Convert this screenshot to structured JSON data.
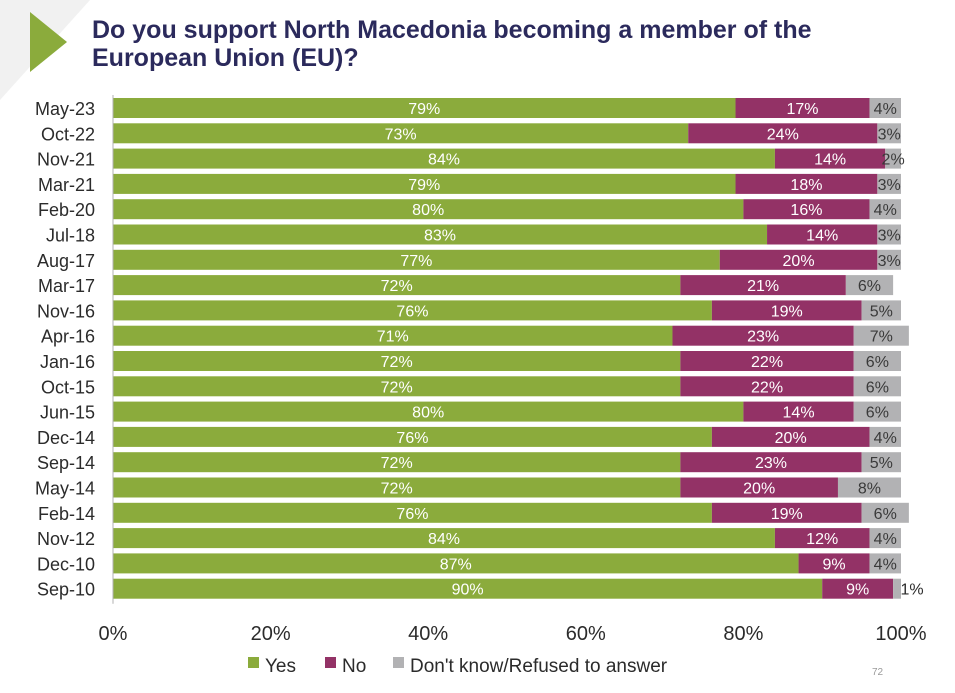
{
  "title": "Do you support North Macedonia becoming a member of the European Union (EU)?",
  "page_number": "72",
  "colors": {
    "yes": "#8bab3c",
    "no": "#933266",
    "dont_know": "#b2b2b4",
    "title": "#2b2a5c",
    "arrow": "#8bab3c"
  },
  "chart_data": {
    "type": "bar",
    "orientation": "horizontal",
    "stacked": true,
    "categories": [
      "May-23",
      "Oct-22",
      "Nov-21",
      "Mar-21",
      "Feb-20",
      "Jul-18",
      "Aug-17",
      "Mar-17",
      "Nov-16",
      "Apr-16",
      "Jan-16",
      "Oct-15",
      "Jun-15",
      "Dec-14",
      "Sep-14",
      "May-14",
      "Feb-14",
      "Nov-12",
      "Dec-10",
      "Sep-10"
    ],
    "series": [
      {
        "name": "Yes",
        "color": "#8bab3c",
        "values": [
          79,
          73,
          84,
          79,
          80,
          83,
          77,
          72,
          76,
          71,
          72,
          72,
          80,
          76,
          72,
          72,
          76,
          84,
          87,
          90
        ],
        "labels": [
          "79%",
          "73%",
          "84%",
          "79%",
          "80%",
          "83%",
          "77%",
          "72%",
          "76%",
          "71%",
          "72%",
          "72%",
          "80%",
          "76%",
          "72%",
          "72%",
          "76%",
          "84%",
          "87%",
          "90%"
        ]
      },
      {
        "name": "No",
        "color": "#933266",
        "values": [
          17,
          24,
          14,
          18,
          16,
          14,
          20,
          21,
          19,
          23,
          22,
          22,
          14,
          20,
          23,
          20,
          19,
          12,
          9,
          9
        ],
        "labels": [
          "17%",
          "24%",
          "14%",
          "18%",
          "16%",
          "14%",
          "20%",
          "21%",
          "19%",
          "23%",
          "22%",
          "22%",
          "14%",
          "20%",
          "23%",
          "20%",
          "19%",
          "12%",
          "9%",
          "9%"
        ]
      },
      {
        "name": "Don't know/Refused to answer",
        "color": "#b2b2b4",
        "values": [
          4,
          3,
          2,
          3,
          4,
          3,
          3,
          6,
          5,
          7,
          6,
          6,
          6,
          4,
          5,
          8,
          6,
          4,
          4,
          1
        ],
        "labels": [
          "4%",
          "3%",
          "2%",
          "3%",
          "4%",
          "3%",
          "3%",
          "6%",
          "5%",
          "7%",
          "6%",
          "6%",
          "6%",
          "4%",
          "5%",
          "8%",
          "6%",
          "4%",
          "4%",
          "1%"
        ]
      }
    ],
    "xaxis": {
      "range": [
        0,
        100
      ],
      "ticks": [
        "0%",
        "20%",
        "40%",
        "60%",
        "80%",
        "100%"
      ]
    },
    "grid": false,
    "legend_position": "bottom"
  }
}
